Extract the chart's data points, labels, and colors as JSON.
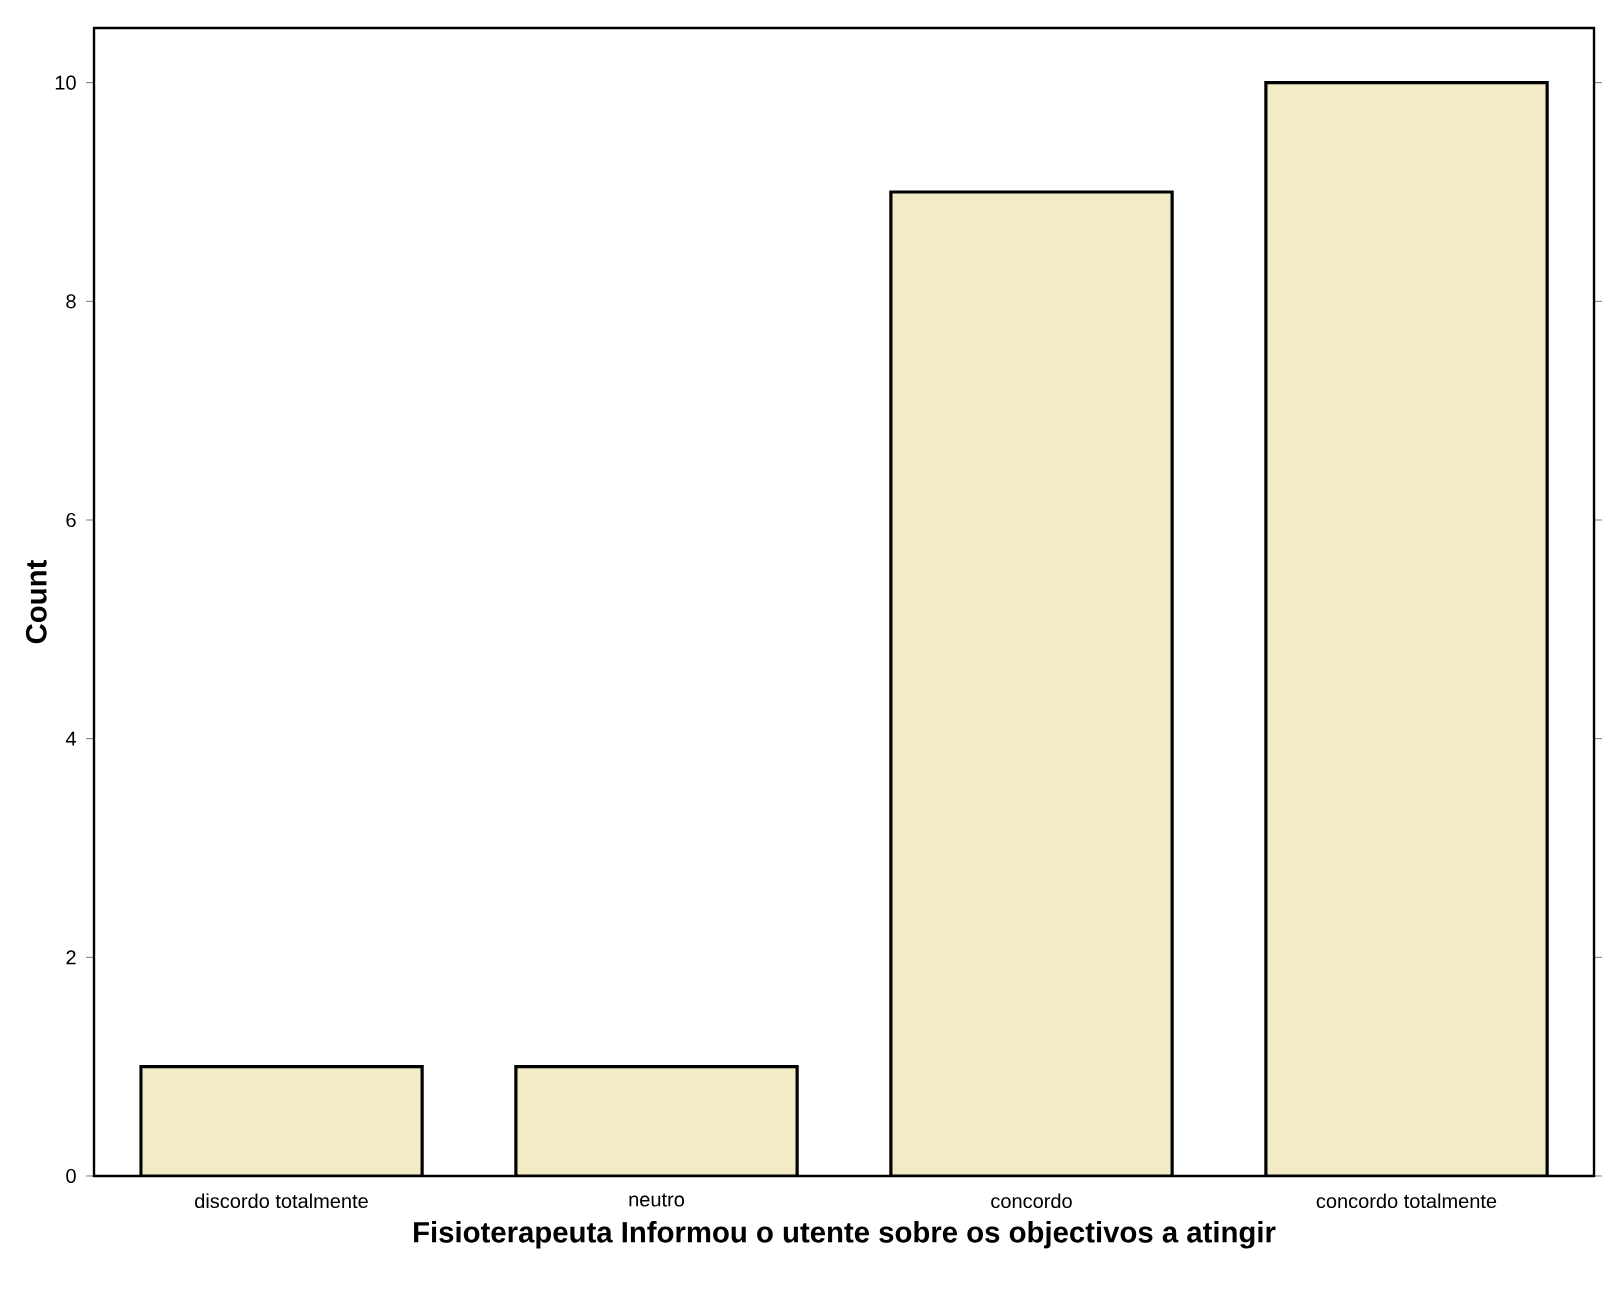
{
  "chart_data": {
    "type": "bar",
    "xlabel": "Fisioterapeuta Informou o utente sobre os objectivos a atingir",
    "ylabel": "Count",
    "categories": [
      "discordo totalmente",
      "neutro",
      "concordo",
      "concordo totalmente"
    ],
    "values": [
      1,
      1,
      9,
      10
    ],
    "color": "#f2ebc6",
    "ylim": [
      0,
      10.5
    ],
    "yticks": [
      0,
      2,
      4,
      6,
      8,
      10
    ]
  }
}
